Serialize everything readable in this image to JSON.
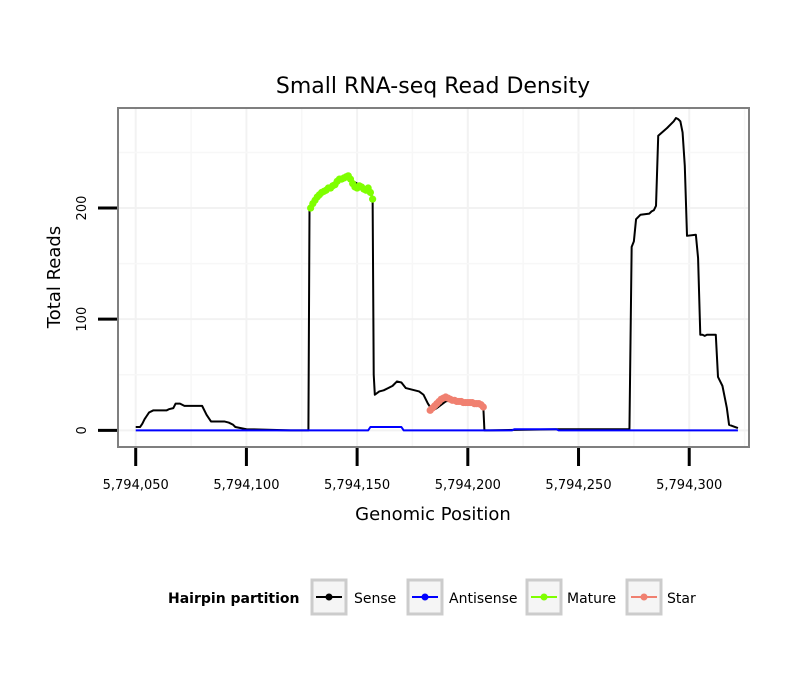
{
  "chart_data": {
    "type": "line",
    "title": "Small RNA-seq Read Density",
    "xlabel": "Genomic Position",
    "ylabel": "Total Reads",
    "xlim": [
      5794042,
      5794327
    ],
    "ylim": [
      -15,
      290
    ],
    "x_ticks": [
      5794050,
      5794100,
      5794150,
      5794200,
      5794250,
      5794300
    ],
    "x_tick_labels": [
      "5,794,050",
      "5,794,100",
      "5,794,150",
      "5,794,200",
      "5,794,250",
      "5,794,300"
    ],
    "y_ticks": [
      0,
      100,
      200
    ],
    "y_tick_labels": [
      "0",
      "100",
      "200"
    ],
    "grid": true,
    "legend": {
      "title": "Hairpin partition",
      "position": "bottom",
      "entries": [
        {
          "name": "Sense",
          "color": "#000000"
        },
        {
          "name": "Antisense",
          "color": "#0000ff"
        },
        {
          "name": "Mature",
          "color": "#7fff00"
        },
        {
          "name": "Star",
          "color": "#f08070"
        }
      ]
    },
    "series": [
      {
        "name": "Sense",
        "color": "#000000",
        "markers": false,
        "x": [
          5794050,
          5794052,
          5794053,
          5794054,
          5794055,
          5794056,
          5794058,
          5794060,
          5794064,
          5794065,
          5794067,
          5794068,
          5794070,
          5794072,
          5794073,
          5794080,
          5794082,
          5794084,
          5794090,
          5794092,
          5794094,
          5794095,
          5794100,
          5794120,
          5794128,
          5794128.5,
          5794130,
          5794135,
          5794140,
          5794145,
          5794150,
          5794155,
          5794157,
          5794157.5,
          5794158,
          5794160,
          5794162,
          5794164,
          5794166,
          5794168,
          5794170,
          5794172,
          5794174,
          5794176,
          5794178,
          5794180,
          5794182,
          5794184,
          5794186,
          5794190,
          5794195,
          5794200,
          5794205,
          5794207,
          5794207.5,
          5794210,
          5794240,
          5794273,
          5794274,
          5794275,
          5794276,
          5794278,
          5794282,
          5794283,
          5794284,
          5794285,
          5794286,
          5794290,
          5794293,
          5794294,
          5794295,
          5794296,
          5794297,
          5794298,
          5794299,
          5794303,
          5794304,
          5794305,
          5794306,
          5794307,
          5794308,
          5794312,
          5794313,
          5794314,
          5794315,
          5794316,
          5794317,
          5794318,
          5794322
        ],
        "y": [
          3,
          3,
          6,
          10,
          13,
          16,
          18,
          18,
          18,
          19,
          20,
          24,
          24,
          22,
          22,
          22,
          14,
          8,
          8,
          7,
          5,
          3,
          1,
          0,
          0,
          200,
          205,
          215,
          222,
          228,
          222,
          216,
          210,
          50,
          32,
          35,
          36,
          38,
          40,
          44,
          43,
          38,
          37,
          36,
          35,
          32,
          24,
          18,
          20,
          26,
          28,
          26,
          23,
          21,
          0,
          0,
          1,
          1,
          165,
          170,
          190,
          194,
          195,
          197,
          198,
          202,
          265,
          272,
          278,
          281,
          280,
          278,
          268,
          238,
          175,
          176,
          155,
          86,
          86,
          85,
          86,
          86,
          48,
          44,
          40,
          30,
          20,
          5,
          2
        ]
      },
      {
        "name": "Antisense",
        "color": "#0000ff",
        "markers": false,
        "x": [
          5794050,
          5794100,
          5794150,
          5794155,
          5794156,
          5794170,
          5794171,
          5794180,
          5794200,
          5794220,
          5794221,
          5794240,
          5794241,
          5794260,
          5794300,
          5794322
        ],
        "y": [
          0,
          0,
          0,
          0,
          3,
          3,
          0,
          0,
          0,
          0,
          1,
          1,
          0,
          0,
          0,
          0
        ]
      },
      {
        "name": "Mature",
        "color": "#7fff00",
        "markers": true,
        "x": [
          5794129,
          5794130,
          5794131,
          5794132,
          5794133,
          5794134,
          5794135,
          5794136,
          5794137,
          5794138,
          5794139,
          5794140,
          5794141,
          5794142,
          5794143,
          5794144,
          5794145,
          5794146,
          5794147,
          5794148,
          5794149,
          5794150,
          5794151,
          5794152,
          5794153,
          5794154,
          5794155,
          5794156,
          5794157
        ],
        "y": [
          200,
          204,
          207,
          210,
          212,
          214,
          215,
          216,
          218,
          218,
          220,
          221,
          224,
          226,
          226,
          227,
          228,
          229,
          226,
          222,
          219,
          218,
          220,
          219,
          217,
          216,
          218,
          214,
          208
        ]
      },
      {
        "name": "Star",
        "color": "#f08070",
        "markers": true,
        "x": [
          5794183,
          5794184,
          5794185,
          5794186,
          5794187,
          5794188,
          5794189,
          5794190,
          5794191,
          5794192,
          5794193,
          5794194,
          5794195,
          5794196,
          5794197,
          5794198,
          5794199,
          5794200,
          5794201,
          5794202,
          5794203,
          5794204,
          5794205,
          5794206,
          5794207
        ],
        "y": [
          18,
          20,
          22,
          24,
          26,
          28,
          29,
          30,
          29,
          28,
          27,
          27,
          26,
          26,
          26,
          25,
          25,
          25,
          25,
          25,
          24,
          24,
          24,
          23,
          21
        ]
      }
    ]
  }
}
